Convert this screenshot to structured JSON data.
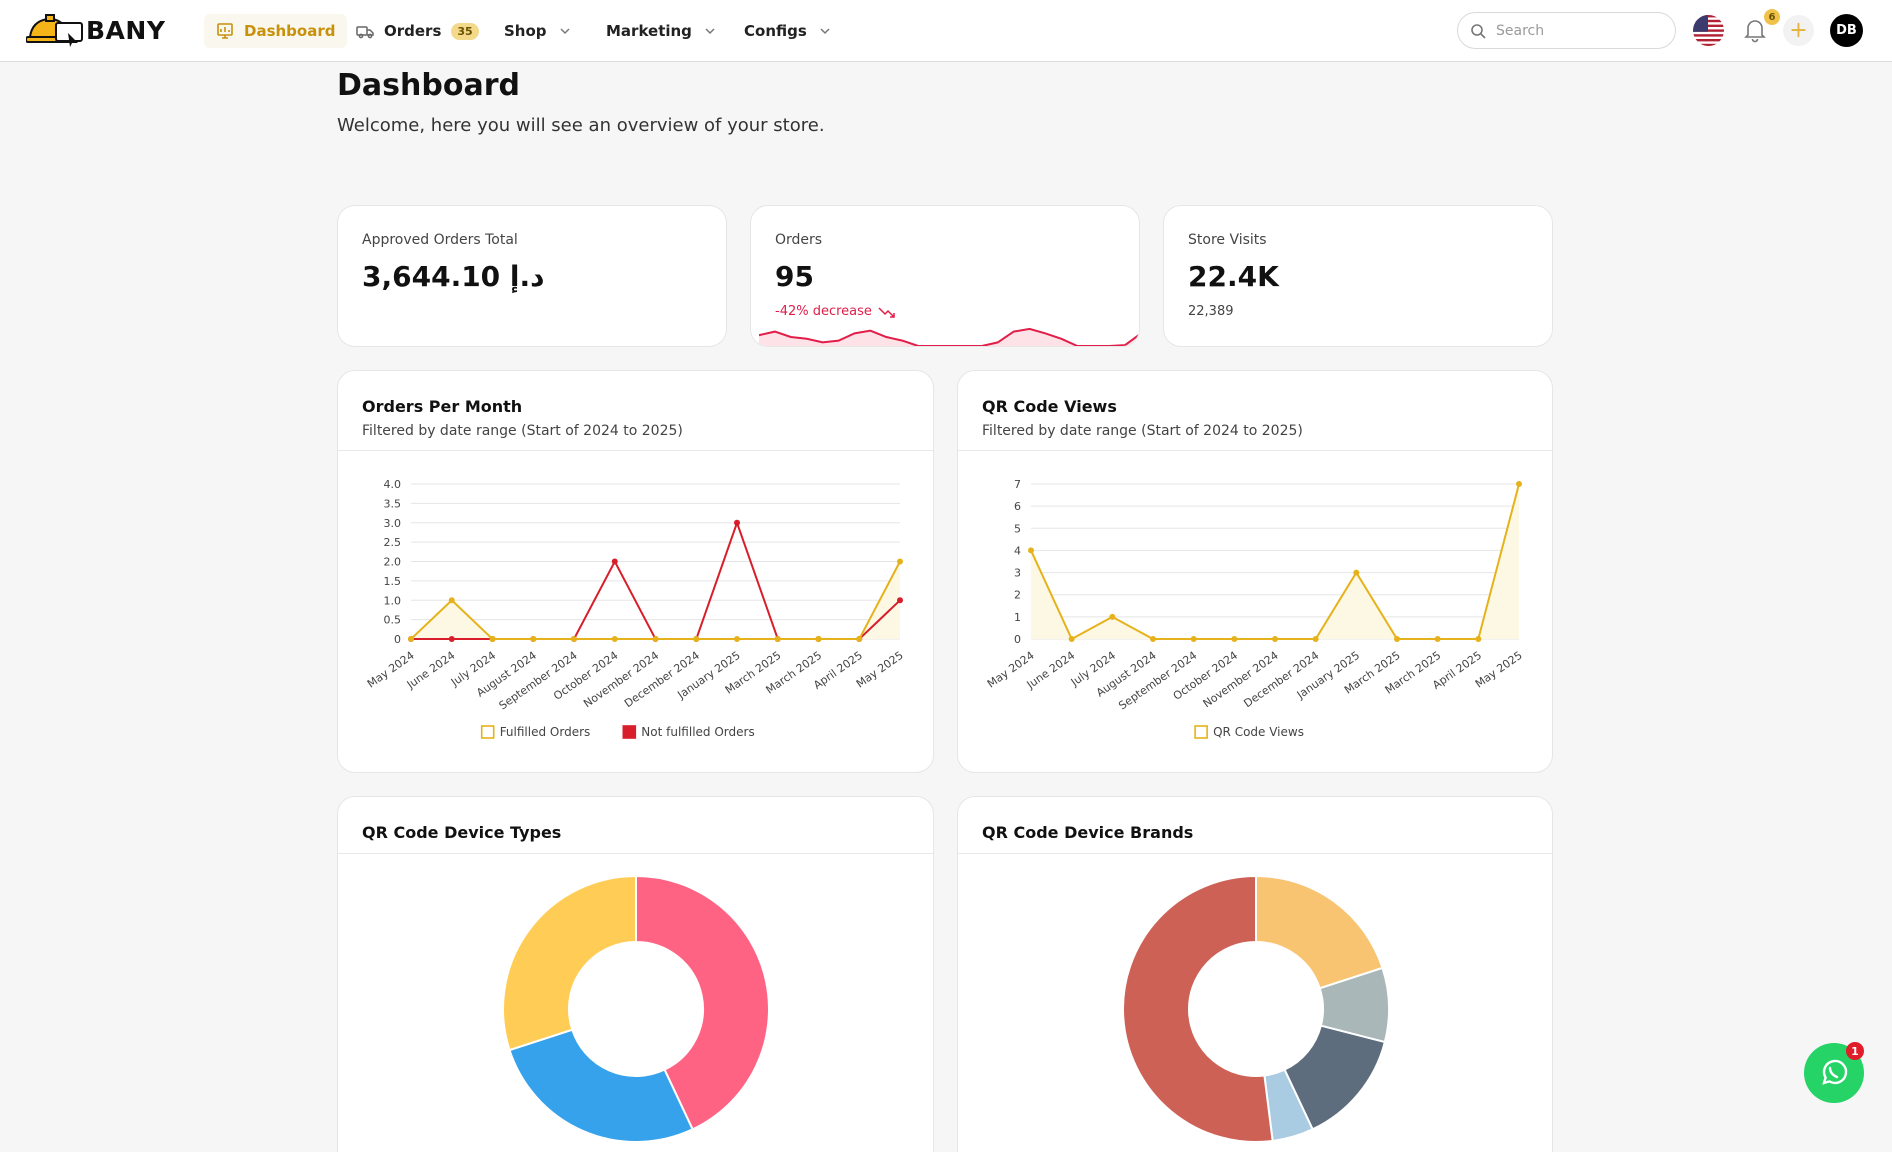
{
  "nav": {
    "brand": "BANY",
    "items": [
      {
        "label": "Dashboard",
        "active": true
      },
      {
        "label": "Orders",
        "badge": "35"
      },
      {
        "label": "Shop"
      },
      {
        "label": "Marketing"
      },
      {
        "label": "Configs"
      }
    ],
    "search_placeholder": "Search",
    "notification_count": "6",
    "avatar_initials": "DB"
  },
  "page": {
    "title": "Dashboard",
    "subtitle": "Welcome, here you will see an overview of your store."
  },
  "stats": [
    {
      "label": "Approved Orders Total",
      "value": "3,644.10 د.إ",
      "sub": ""
    },
    {
      "label": "Orders",
      "value": "95",
      "sub": "-42% decrease",
      "trend": "down",
      "trend_color": "#e11d48"
    },
    {
      "label": "Store Visits",
      "value": "22.4K",
      "sub": "22,389"
    }
  ],
  "charts": {
    "orders": {
      "title": "Orders Per Month",
      "subtitle": "Filtered by date range (Start of 2024 to 2025)"
    },
    "qr_views": {
      "title": "QR Code Views",
      "subtitle": "Filtered by date range (Start of 2024 to 2025)"
    },
    "device_types": {
      "title": "QR Code Device Types"
    },
    "device_brands": {
      "title": "QR Code Device Brands"
    }
  },
  "chart_data": [
    {
      "type": "line",
      "title": "Orders Per Month",
      "categories": [
        "May 2024",
        "June 2024",
        "July 2024",
        "August 2024",
        "September 2024",
        "October 2024",
        "November 2024",
        "December 2024",
        "January 2025",
        "March 2025",
        "March 2025",
        "April 2025",
        "May 2025"
      ],
      "ylim": [
        0,
        4
      ],
      "yticks": [
        "0",
        "0.5",
        "1.0",
        "1.5",
        "2.0",
        "2.5",
        "3.0",
        "3.5",
        "4.0"
      ],
      "grid": true,
      "legend": "bottom",
      "series": [
        {
          "name": "Fulfilled Orders",
          "color": "#e6b21c",
          "fill": "#fdf8e4",
          "values": [
            0,
            1,
            0,
            0,
            0,
            0,
            0,
            0,
            0,
            0,
            0,
            0,
            2
          ]
        },
        {
          "name": "Not fulfilled Orders",
          "color": "#d81e2a",
          "values": [
            0,
            0,
            0,
            0,
            0,
            2,
            0,
            0,
            3,
            0,
            0,
            0,
            1
          ]
        }
      ]
    },
    {
      "type": "area",
      "title": "QR Code Views",
      "categories": [
        "May 2024",
        "June 2024",
        "July 2024",
        "August 2024",
        "September 2024",
        "October 2024",
        "November 2024",
        "December 2024",
        "January 2025",
        "March 2025",
        "March 2025",
        "April 2025",
        "May 2025"
      ],
      "ylim": [
        0,
        7
      ],
      "yticks": [
        "0",
        "1",
        "2",
        "3",
        "4",
        "5",
        "6",
        "7"
      ],
      "grid": true,
      "legend": "bottom",
      "series": [
        {
          "name": "QR Code Views",
          "color": "#e6b21c",
          "fill": "#fdf8e4",
          "values": [
            4,
            0,
            1,
            0,
            0,
            0,
            0,
            0,
            3,
            0,
            0,
            0,
            7
          ]
        }
      ]
    },
    {
      "type": "pie",
      "title": "QR Code Device Types",
      "donut": true,
      "values": [
        43,
        27,
        30
      ],
      "colors": [
        "#ff6384",
        "#36a2eb",
        "#ffcd56"
      ]
    },
    {
      "type": "pie",
      "title": "QR Code Device Brands",
      "donut": true,
      "values": [
        20,
        9,
        14,
        5,
        52
      ],
      "colors": [
        "#f8c471",
        "#aab7b8",
        "#5d6d7e",
        "#a9cce3",
        "#cd6155"
      ]
    }
  ],
  "sparkline": {
    "color": "#e11d48",
    "values": [
      0.6,
      0.8,
      0.5,
      0.4,
      0.2,
      0.3,
      0.7,
      0.85,
      0.5,
      0.3,
      0.0,
      0.0,
      0.0,
      0.0,
      0.0,
      0.2,
      0.8,
      0.95,
      0.7,
      0.4,
      0.0,
      0.0,
      0.0,
      0.05,
      0.7
    ]
  },
  "whatsapp_badge": "1"
}
